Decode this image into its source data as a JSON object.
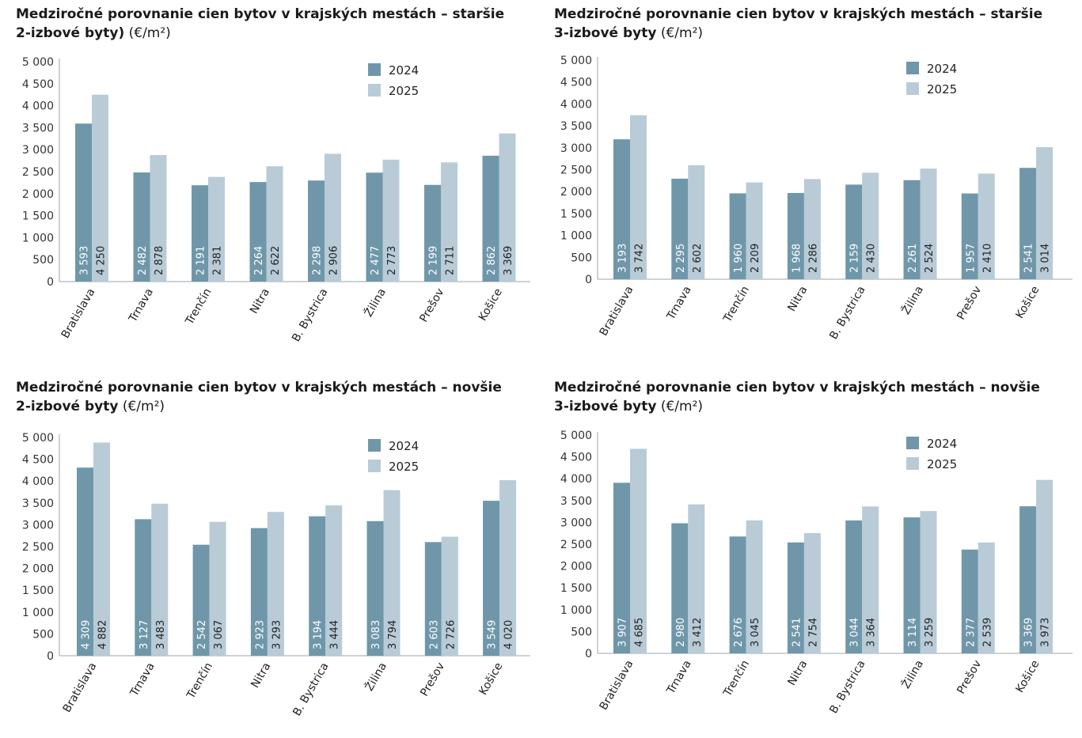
{
  "colors": {
    "y2024": "#6f97a9",
    "y2025": "#b8cbd7",
    "axis": "#9aa5ad",
    "label_dark": "#ffffff",
    "label_light": "#222222"
  },
  "unit": "(€/m²)",
  "chart_data": [
    {
      "type": "bar",
      "title_bold": "Medziročné porovnanie cien bytov v krajských mestách – staršie 2-izbové byty)",
      "title_line1": "Medziročné porovnanie cien bytov v krajských mestách – staršie",
      "title_line2": "2-izbové byty)",
      "categories": [
        "Bratislava",
        "Trnava",
        "Trenčín",
        "Nitra",
        "B. Bystrica",
        "Žilina",
        "Prešov",
        "Košice"
      ],
      "ylim": [
        0,
        5000
      ],
      "yticks": [
        "0",
        "500",
        "1 000",
        "1 500",
        "2 000",
        "2 500",
        "3 000",
        "3 500",
        "4 000",
        "4 500",
        "5 000"
      ],
      "legend_position": "top-right",
      "series": [
        {
          "name": "2024",
          "values": [
            3593,
            2482,
            2191,
            2264,
            2298,
            2477,
            2199,
            2862
          ],
          "labels": [
            "3 593",
            "2 482",
            "2 191",
            "2 264",
            "2 298",
            "2 477",
            "2 199",
            "2 862"
          ]
        },
        {
          "name": "2025",
          "values": [
            4250,
            2878,
            2381,
            2622,
            2906,
            2773,
            2711,
            3369
          ],
          "labels": [
            "4 250",
            "2 878",
            "2 381",
            "2 622",
            "2 906",
            "2 773",
            "2 711",
            "3 369"
          ]
        }
      ]
    },
    {
      "type": "bar",
      "title_line1": "Medziročné porovnanie cien bytov v krajských mestách – staršie",
      "title_line2": "3-izbové byty",
      "categories": [
        "Bratislava",
        "Trnava",
        "Trenčín",
        "Nitra",
        "B. Bystrica",
        "Žilina",
        "Prešov",
        "Košice"
      ],
      "ylim": [
        0,
        5000
      ],
      "yticks": [
        "0",
        "500",
        "1 000",
        "1 500",
        "2 000",
        "2 500",
        "3 000",
        "3 500",
        "4 000",
        "4 500",
        "5 000"
      ],
      "legend_position": "top-right",
      "series": [
        {
          "name": "2024",
          "values": [
            3193,
            2295,
            1960,
            1968,
            2159,
            2261,
            1957,
            2541
          ],
          "labels": [
            "3 193",
            "2 295",
            "1 960",
            "1 968",
            "2 159",
            "2 261",
            "1 957",
            "2 541"
          ]
        },
        {
          "name": "2025",
          "values": [
            3742,
            2602,
            2209,
            2286,
            2430,
            2524,
            2410,
            3014
          ],
          "labels": [
            "3 742",
            "2 602",
            "2 209",
            "2 286",
            "2 430",
            "2 524",
            "2 410",
            "3 014"
          ]
        }
      ]
    },
    {
      "type": "bar",
      "title_line1": "Medziročné porovnanie cien bytov v krajských mestách – novšie",
      "title_line2": "2-izbové byty",
      "categories": [
        "Bratislava",
        "Trnava",
        "Trenčín",
        "Nitra",
        "B. Bystrica",
        "Žilina",
        "Prešov",
        "Košice"
      ],
      "ylim": [
        0,
        5000
      ],
      "yticks": [
        "0",
        "500",
        "1 000",
        "1 500",
        "2 000",
        "2 500",
        "3 000",
        "3 500",
        "4 000",
        "4 500",
        "5 000"
      ],
      "legend_position": "top-right",
      "series": [
        {
          "name": "2024",
          "values": [
            4309,
            3127,
            2542,
            2923,
            3194,
            3083,
            2603,
            3549
          ],
          "labels": [
            "4 309",
            "3 127",
            "2 542",
            "2 923",
            "3 194",
            "3 083",
            "2 603",
            "3 549"
          ]
        },
        {
          "name": "2025",
          "values": [
            4882,
            3483,
            3067,
            3293,
            3444,
            3794,
            2726,
            4020
          ],
          "labels": [
            "4 882",
            "3 483",
            "3 067",
            "3 293",
            "3 444",
            "3 794",
            "2 726",
            "4 020"
          ]
        }
      ]
    },
    {
      "type": "bar",
      "title_line1": "Medziročné porovnanie cien bytov v krajských mestách – novšie",
      "title_line2": "3-izbové byty",
      "categories": [
        "Bratislava",
        "Trnava",
        "Trenčín",
        "Nitra",
        "B. Bystrica",
        "Žilina",
        "Prešov",
        "Košice"
      ],
      "ylim": [
        0,
        5000
      ],
      "yticks": [
        "0",
        "500",
        "1 000",
        "1 500",
        "2 000",
        "2 500",
        "3 000",
        "3 500",
        "4 000",
        "4 500",
        "5 000"
      ],
      "legend_position": "top-right",
      "series": [
        {
          "name": "2024",
          "values": [
            3907,
            2980,
            2676,
            2541,
            3044,
            3114,
            2377,
            3369
          ],
          "labels": [
            "3 907",
            "2 980",
            "2 676",
            "2 541",
            "3 044",
            "3 114",
            "2 377",
            "3 369"
          ]
        },
        {
          "name": "2025",
          "values": [
            4685,
            3412,
            3045,
            2754,
            3364,
            3259,
            2539,
            3973
          ],
          "labels": [
            "4 685",
            "3 412",
            "3 045",
            "2 754",
            "3 364",
            "3 259",
            "2 539",
            "3 973"
          ]
        }
      ]
    }
  ]
}
